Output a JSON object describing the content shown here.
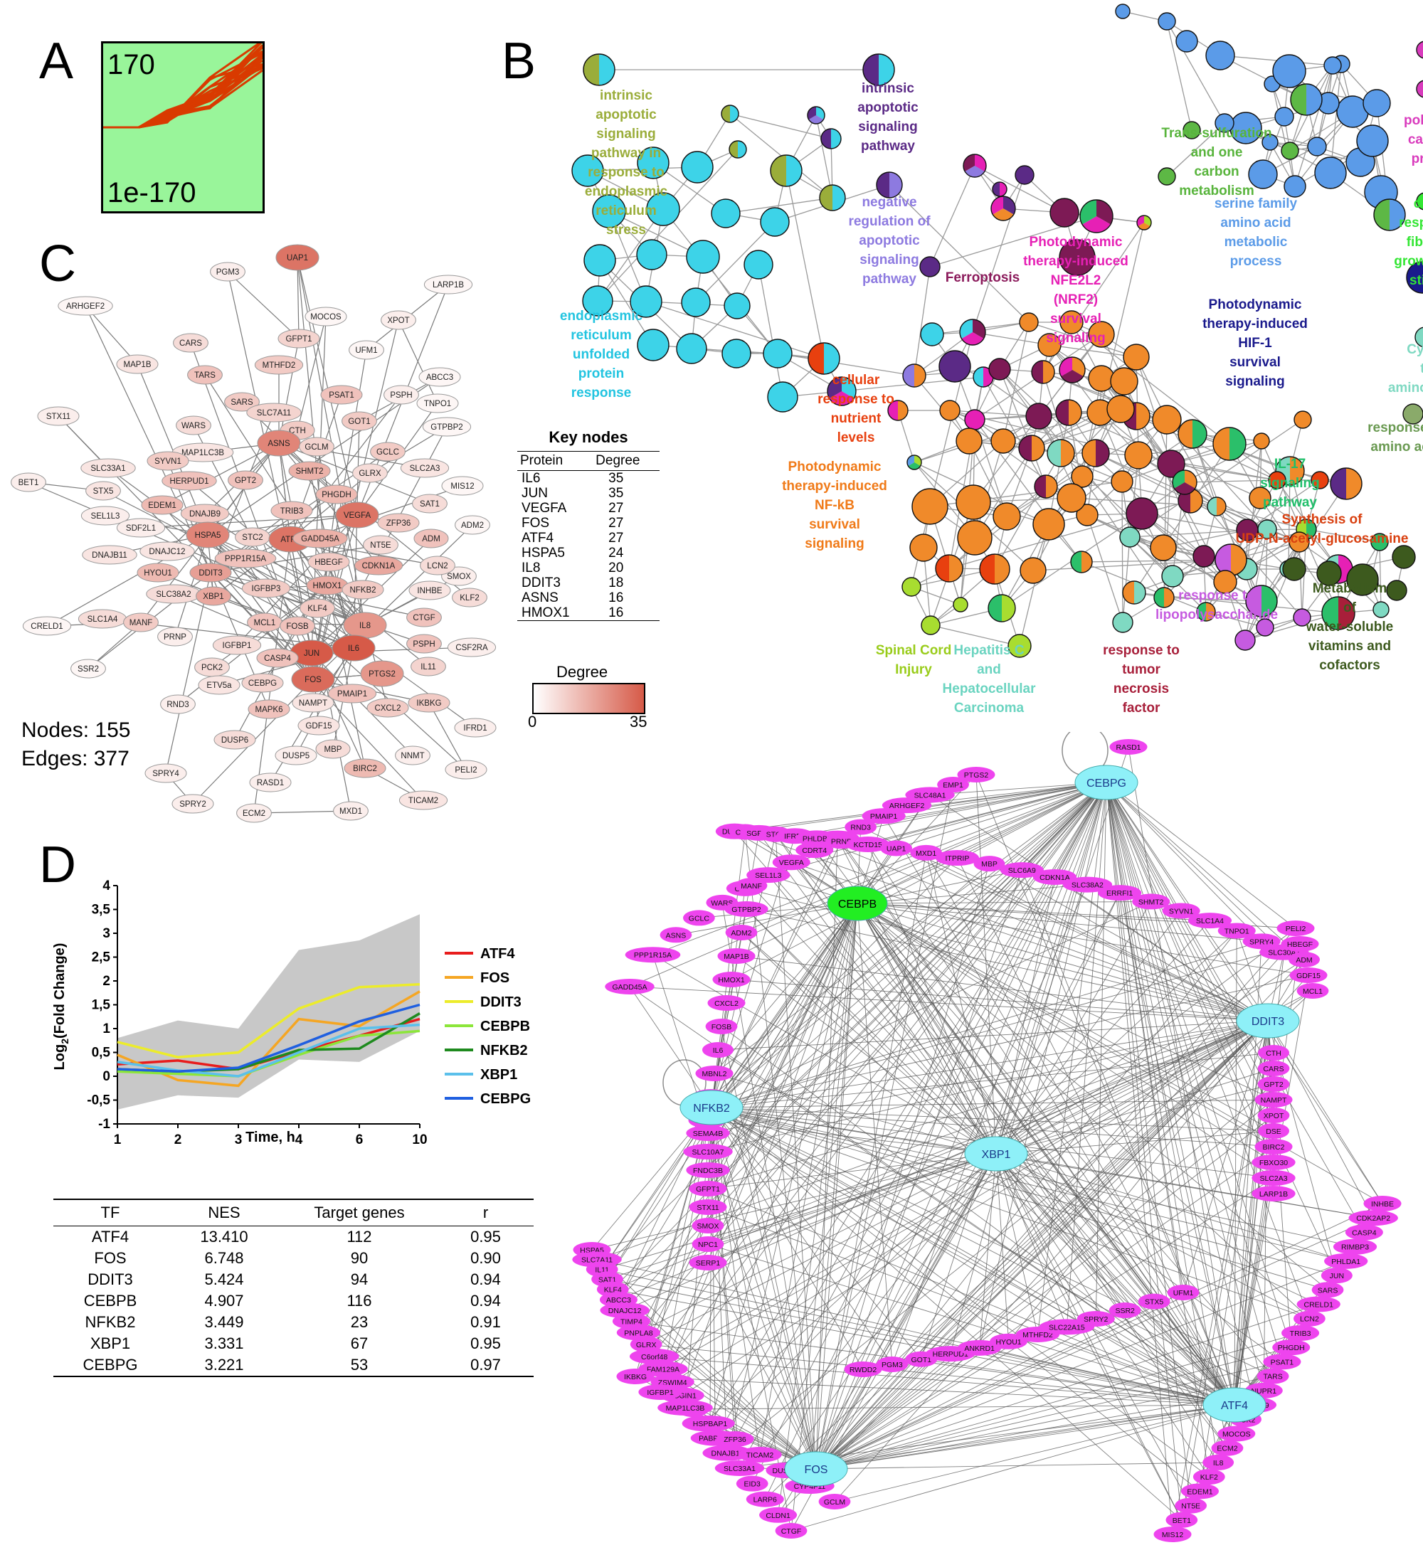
{
  "panels": {
    "A": "A",
    "B": "B",
    "C": "C",
    "D": "D"
  },
  "panel_a": {
    "top_value": "170",
    "bottom_value": "1e-170",
    "bg": "#99f59a",
    "line_color": "#d93a00"
  },
  "panel_b": {
    "labels": [
      {
        "id": "ipsp-er",
        "text": [
          "intrinsic",
          "apoptotic",
          "signaling",
          "pathway in",
          "response to",
          "endoplasmic",
          "reticulum",
          "stress"
        ],
        "color": "#9aad3a"
      },
      {
        "id": "iasp",
        "text": [
          "intrinsic",
          "apoptotic",
          "signaling",
          "pathway"
        ],
        "color": "#5b2a86"
      },
      {
        "id": "neg-reg",
        "text": [
          "negative",
          "regulation of",
          "apoptotic",
          "signaling",
          "pathway"
        ],
        "color": "#8d7ae0"
      },
      {
        "id": "trans-sulf",
        "text": [
          "Trans-sulfuration",
          "and one",
          "carbon",
          "metabolism"
        ],
        "color": "#58b43c"
      },
      {
        "id": "polyamine",
        "text": [
          "polyamine",
          "catabolic",
          "process"
        ],
        "color": "#d93bbd"
      },
      {
        "id": "serine",
        "text": [
          "serine family",
          "amino acid",
          "metabolic",
          "process"
        ],
        "color": "#5b9be8"
      },
      {
        "id": "fgf",
        "text": [
          "cellular",
          "response to",
          "fibroblast",
          "growth factor",
          "stimulus"
        ],
        "color": "#33e633"
      },
      {
        "id": "ferroptosis",
        "text": [
          "Ferroptosis"
        ],
        "color": "#8b1a5b"
      },
      {
        "id": "pdt-nrf2",
        "text": [
          "Photodynamic",
          "therapy-induced",
          "NFE2L2",
          "(NRF2)",
          "survival",
          "signaling"
        ],
        "color": "#e620b5"
      },
      {
        "id": "upr",
        "text": [
          "endoplasmic",
          "reticulum",
          "unfolded",
          "protein",
          "response"
        ],
        "color": "#22c4e0"
      },
      {
        "id": "hif1",
        "text": [
          "Photodynamic",
          "therapy-induced",
          "HIF-1",
          "survival",
          "signaling"
        ],
        "color": "#1a1a8c"
      },
      {
        "id": "trna",
        "text": [
          "Cytosolic",
          "tRNA",
          "aminoacylation"
        ],
        "color": "#7fd9c2"
      },
      {
        "id": "nutrient",
        "text": [
          "cellular",
          "response to",
          "nutrient",
          "levels"
        ],
        "color": "#e8400f"
      },
      {
        "id": "aa",
        "text": [
          "response to",
          "amino acid"
        ],
        "color": "#6a9a52"
      },
      {
        "id": "nfkb",
        "text": [
          "Photodynamic",
          "therapy-induced",
          "NF-kB",
          "survival",
          "signaling"
        ],
        "color": "#f07a18"
      },
      {
        "id": "il17",
        "text": [
          "IL-17",
          "signaling",
          "pathway"
        ],
        "color": "#1fbf6a"
      },
      {
        "id": "udp",
        "text": [
          "Synthesis of",
          "UDP-N-acetyl-glucosamine"
        ],
        "color": "#d94010"
      },
      {
        "id": "lps",
        "text": [
          "response to",
          "lipopolysaccharide"
        ],
        "color": "#c65be0"
      },
      {
        "id": "vitamins",
        "text": [
          "Metabolism",
          "of",
          "water-soluble",
          "vitamins and",
          "cofactors"
        ],
        "color": "#3d5a1e"
      },
      {
        "id": "sci",
        "text": [
          "Spinal Cord",
          "Injury"
        ],
        "color": "#99cc1a"
      },
      {
        "id": "hcc",
        "text": [
          "Hepatitis C",
          "and",
          "Hepatocellular",
          "Carcinoma"
        ],
        "color": "#6ad4c0"
      },
      {
        "id": "tnf",
        "text": [
          "response to",
          "tumor",
          "necrosis",
          "factor"
        ],
        "color": "#a81f3a"
      }
    ]
  },
  "panel_c": {
    "nodes_label": "Nodes: 155",
    "edges_label": "Edges: 377",
    "key_nodes_title": "Key nodes",
    "key_nodes_headers": [
      "Protein",
      "Degree"
    ],
    "key_nodes": [
      [
        "IL6",
        "35"
      ],
      [
        "JUN",
        "35"
      ],
      [
        "VEGFA",
        "27"
      ],
      [
        "FOS",
        "27"
      ],
      [
        "ATF4",
        "27"
      ],
      [
        "HSPA5",
        "24"
      ],
      [
        "IL8",
        "20"
      ],
      [
        "DDIT3",
        "18"
      ],
      [
        "ASNS",
        "16"
      ],
      [
        "HMOX1",
        "16"
      ]
    ],
    "degree_title": "Degree",
    "degree_min": "0",
    "degree_max": "35",
    "nodes": [
      [
        "UAP1",
        80
      ],
      [
        "PGM3",
        10
      ],
      [
        "LARP1B",
        5
      ],
      [
        "ARHGEF2",
        5
      ],
      [
        "MOCOS",
        5
      ],
      [
        "XPOT",
        10
      ],
      [
        "GFPT1",
        25
      ],
      [
        "CARS",
        20
      ],
      [
        "TARS",
        35
      ],
      [
        "MTHFD2",
        30
      ],
      [
        "UFM1",
        5
      ],
      [
        "MAP1B",
        15
      ],
      [
        "SARS",
        30
      ],
      [
        "PSAT1",
        35
      ],
      [
        "PSPH",
        10
      ],
      [
        "ABCC3",
        5
      ],
      [
        "TNPO1",
        5
      ],
      [
        "CTH",
        30
      ],
      [
        "WARS",
        20
      ],
      [
        "SLC7A11",
        25
      ],
      [
        "GOT1",
        30
      ],
      [
        "STX11",
        10
      ],
      [
        "ASNS",
        70
      ],
      [
        "GCLM",
        25
      ],
      [
        "GCLC",
        30
      ],
      [
        "GTPBP2",
        5
      ],
      [
        "MAP1LC3B",
        15
      ],
      [
        "SHMT2",
        45
      ],
      [
        "GLRX",
        20
      ],
      [
        "SLC2A3",
        15
      ],
      [
        "SLC33A1",
        15
      ],
      [
        "SYVN1",
        30
      ],
      [
        "HERPUD1",
        35
      ],
      [
        "GPT2",
        35
      ],
      [
        "PHGDH",
        40
      ],
      [
        "MIS12",
        5
      ],
      [
        "BET1",
        10
      ],
      [
        "STX5",
        15
      ],
      [
        "EDEM1",
        40
      ],
      [
        "TRIB3",
        35
      ],
      [
        "SAT1",
        20
      ],
      [
        "DNAJB9",
        30
      ],
      [
        "VEGFA",
        80
      ],
      [
        "ZFP36",
        30
      ],
      [
        "SEL1L3",
        10
      ],
      [
        "SDF2L1",
        10
      ],
      [
        "HSPA5",
        70
      ],
      [
        "STC2",
        25
      ],
      [
        "ATF4",
        80
      ],
      [
        "GADD45A",
        45
      ],
      [
        "NT5E",
        20
      ],
      [
        "ADM",
        35
      ],
      [
        "ADM2",
        5
      ],
      [
        "DNAJC12",
        15
      ],
      [
        "PPP1R15A",
        35
      ],
      [
        "HBEGF",
        30
      ],
      [
        "CDKN1A",
        50
      ],
      [
        "DNAJB11",
        15
      ],
      [
        "HYOU1",
        40
      ],
      [
        "DDIT3",
        55
      ],
      [
        "HMOX1",
        50
      ],
      [
        "SMOX",
        10
      ],
      [
        "LCN2",
        20
      ],
      [
        "SLC38A2",
        20
      ],
      [
        "XBP1",
        50
      ],
      [
        "IGFBP3",
        30
      ],
      [
        "NFKB2",
        30
      ],
      [
        "KLF2",
        20
      ],
      [
        "KLF4",
        30
      ],
      [
        "INHBE",
        15
      ],
      [
        "SLC1A4",
        20
      ],
      [
        "MANF",
        30
      ],
      [
        "MCL1",
        35
      ],
      [
        "FOSB",
        35
      ],
      [
        "IL8",
        60
      ],
      [
        "CTGF",
        35
      ],
      [
        "CRELD1",
        5
      ],
      [
        "PRNP",
        10
      ],
      [
        "IL6",
        95
      ],
      [
        "JUN",
        95
      ],
      [
        "PSPH",
        35
      ],
      [
        "IGFBP1",
        20
      ],
      [
        "CASP4",
        35
      ],
      [
        "CSF2RA",
        10
      ],
      [
        "IL11",
        25
      ],
      [
        "PCK2",
        20
      ],
      [
        "FOS",
        85
      ],
      [
        "PTGS2",
        60
      ],
      [
        "CEBPG",
        25
      ],
      [
        "NAMPT",
        15
      ],
      [
        "SSR2",
        5
      ],
      [
        "ETV5a",
        15
      ],
      [
        "PMAIP1",
        35
      ],
      [
        "CXCL2",
        30
      ],
      [
        "RND3",
        10
      ],
      [
        "MAPK6",
        35
      ],
      [
        "IKBKG",
        30
      ],
      [
        "GDF15",
        15
      ],
      [
        "IFRD1",
        10
      ],
      [
        "DUSP6",
        20
      ],
      [
        "MBP",
        20
      ],
      [
        "BIRC2",
        40
      ],
      [
        "NNMT",
        10
      ],
      [
        "DUSP5",
        10
      ],
      [
        "PELI2",
        10
      ],
      [
        "SPRY4",
        10
      ],
      [
        "RASD1",
        10
      ],
      [
        "TICAM2",
        15
      ],
      [
        "SPRY2",
        10
      ],
      [
        "ECM2",
        10
      ],
      [
        "MXD1",
        10
      ]
    ]
  },
  "panel_d": {
    "chart_data": {
      "type": "line",
      "x": [
        1,
        2,
        3,
        4,
        6,
        10
      ],
      "x_ticks": [
        "1",
        "2",
        "3",
        "4",
        "6",
        "10"
      ],
      "xlabel": "Time, h",
      "ylabel": "Log2(Fold Change)",
      "ylabel_main": "Log",
      "ylabel_sub": "2",
      "ylabel_rest": "(Fold Change)",
      "ylim": [
        -1,
        4
      ],
      "y_ticks": [
        "-1",
        "-0,5",
        "0",
        "0,5",
        "1",
        "1,5",
        "2",
        "2,5",
        "3",
        "3,5",
        "4"
      ],
      "band": {
        "upper": [
          0.8,
          1.17,
          1.0,
          2.65,
          2.85,
          3.4
        ],
        "lower": [
          -0.7,
          -0.4,
          -0.45,
          0.35,
          0.3,
          0.95
        ],
        "color": "#c8c8c8"
      },
      "series": [
        {
          "name": "ATF4",
          "color": "#e81c1c",
          "values": [
            0.25,
            0.33,
            0.15,
            0.52,
            0.85,
            1.2
          ]
        },
        {
          "name": "FOS",
          "color": "#f5a623",
          "values": [
            0.45,
            -0.08,
            -0.2,
            1.2,
            1.05,
            1.78
          ]
        },
        {
          "name": "DDIT3",
          "color": "#ecec2a",
          "values": [
            0.72,
            0.4,
            0.5,
            1.42,
            1.87,
            1.93
          ]
        },
        {
          "name": "CEBPB",
          "color": "#8ce63a",
          "values": [
            0.1,
            0.05,
            0.0,
            0.45,
            0.85,
            0.95
          ]
        },
        {
          "name": "NFKB2",
          "color": "#1e8a1e",
          "values": [
            0.15,
            0.1,
            0.15,
            0.55,
            0.58,
            1.32
          ]
        },
        {
          "name": "XBP1",
          "color": "#5bc0eb",
          "values": [
            0.3,
            0.12,
            0.0,
            0.5,
            1.0,
            1.08
          ]
        },
        {
          "name": "CEBPG",
          "color": "#1f5fe0",
          "values": [
            0.15,
            0.1,
            0.18,
            0.65,
            1.15,
            1.5
          ]
        }
      ],
      "grid": false,
      "legend": "right"
    },
    "tf_table": {
      "headers": [
        "TF",
        "NES",
        "Target genes",
        "r"
      ],
      "rows": [
        [
          "ATF4",
          "13.410",
          "112",
          "0.95"
        ],
        [
          "FOS",
          "6.748",
          "90",
          "0.90"
        ],
        [
          "DDIT3",
          "5.424",
          "94",
          "0.94"
        ],
        [
          "CEBPB",
          "4.907",
          "116",
          "0.94"
        ],
        [
          "NFKB2",
          "3.449",
          "23",
          "0.91"
        ],
        [
          "XBP1",
          "3.331",
          "67",
          "0.95"
        ],
        [
          "CEBPG",
          "3.221",
          "53",
          "0.97"
        ]
      ]
    }
  },
  "panel_e": {
    "hubs": [
      {
        "name": "CEBPG",
        "color": "#8ef0f8"
      },
      {
        "name": "CEBPB",
        "color": "#22ee22"
      },
      {
        "name": "DDIT3",
        "color": "#8ef0f8"
      },
      {
        "name": "NFKB2",
        "color": "#8ef0f8"
      },
      {
        "name": "XBP1",
        "color": "#8ef0f8"
      },
      {
        "name": "ATF4",
        "color": "#8ef0f8"
      },
      {
        "name": "FOS",
        "color": "#8ef0f8"
      }
    ],
    "target_color": "#ee44ee",
    "top_arc": [
      "GADD45A",
      "PPP1R15A",
      "ASNS",
      "GCLC",
      "WARS",
      "CLIC4",
      "SEL1L3",
      "VEGFA",
      "CDRT4",
      "SH3TC1",
      "RND3",
      "PMAIP1",
      "ARHGEF2",
      "SLC48A1",
      "EMP1",
      "PTGS2"
    ],
    "rasd": [
      "RASD1"
    ],
    "inner_top": [
      "DUSP6",
      "CBX4",
      "SGPP2",
      "STC2",
      "IFRD1",
      "PHLDB2",
      "PRNP",
      "KCTD15",
      "UAP1",
      "MXD1",
      "ITPRIP",
      "MBP",
      "SLC6A9",
      "CDKN1A",
      "SLC38A2",
      "ERRFI1",
      "SHMT2",
      "SYVN1",
      "SLC1A4",
      "TNPO1",
      "SPRY4",
      "SLC30A7"
    ],
    "left_col": [
      "MANF",
      "GTPBP2",
      "ADM2",
      "MAP1B",
      "HMOX1",
      "CXCL2",
      "FOSB",
      "IL6",
      "MBNL2",
      "MAPK6",
      "SH2B3"
    ],
    "left_col2": [
      "SEMA4B",
      "SLC10A7",
      "FNDC3B",
      "GFPT1",
      "STX11",
      "SMOX",
      "NPC1",
      "SERP1"
    ],
    "right_top": [
      "PELI2",
      "HBEGF",
      "ADM",
      "GDF15",
      "MCL1"
    ],
    "right_col": [
      "CTH",
      "CARS",
      "GPT2",
      "NAMPT",
      "XPOT",
      "DSE",
      "BIRC2",
      "FBXO30",
      "SLC2A3",
      "LARP1B"
    ],
    "far_left": [
      "HSPA5",
      "SLC7A11",
      "IL11",
      "SAT1",
      "KLF4",
      "ABCC3",
      "DNAJC12",
      "TIMP4",
      "PNPLA8",
      "GLRX",
      "C6orf48",
      "FAM129A",
      "ZSWIM4",
      "OSGIN1",
      "NNMT",
      "IGFBP3",
      "PABPC1L",
      "DNAJB11",
      "SLC33A1",
      "EID3",
      "LARP6",
      "CLDN1",
      "CTGF"
    ],
    "far_left2": [
      "IKBKG",
      "IGFBP1",
      "MAP1LC3B",
      "HSPBAP1",
      "ZFP36",
      "TICAM2",
      "DUSP5",
      "CYP4F11",
      "GCLM"
    ],
    "bottom_mid": [
      "RWDD2",
      "PGM3",
      "GOT1",
      "HERPUD1",
      "ANKRD1",
      "HYOU1",
      "MTHFD2",
      "SLC22A15",
      "SPRY2",
      "SSR2",
      "STX5",
      "UFM1"
    ],
    "far_right": [
      "INHBE",
      "CDK2AP2",
      "CASP4",
      "RIMBP3",
      "PHLDA1",
      "JUN",
      "SARS",
      "CRELD1",
      "LCN2",
      "TRIB3",
      "PHGDH",
      "PSAT1",
      "TARS",
      "NUPR1",
      "DNAJB9",
      "PCK2",
      "MOCOS",
      "ECM2",
      "IL8",
      "KLF2",
      "EDEM1",
      "NT5E",
      "BET1",
      "MIS12"
    ]
  }
}
